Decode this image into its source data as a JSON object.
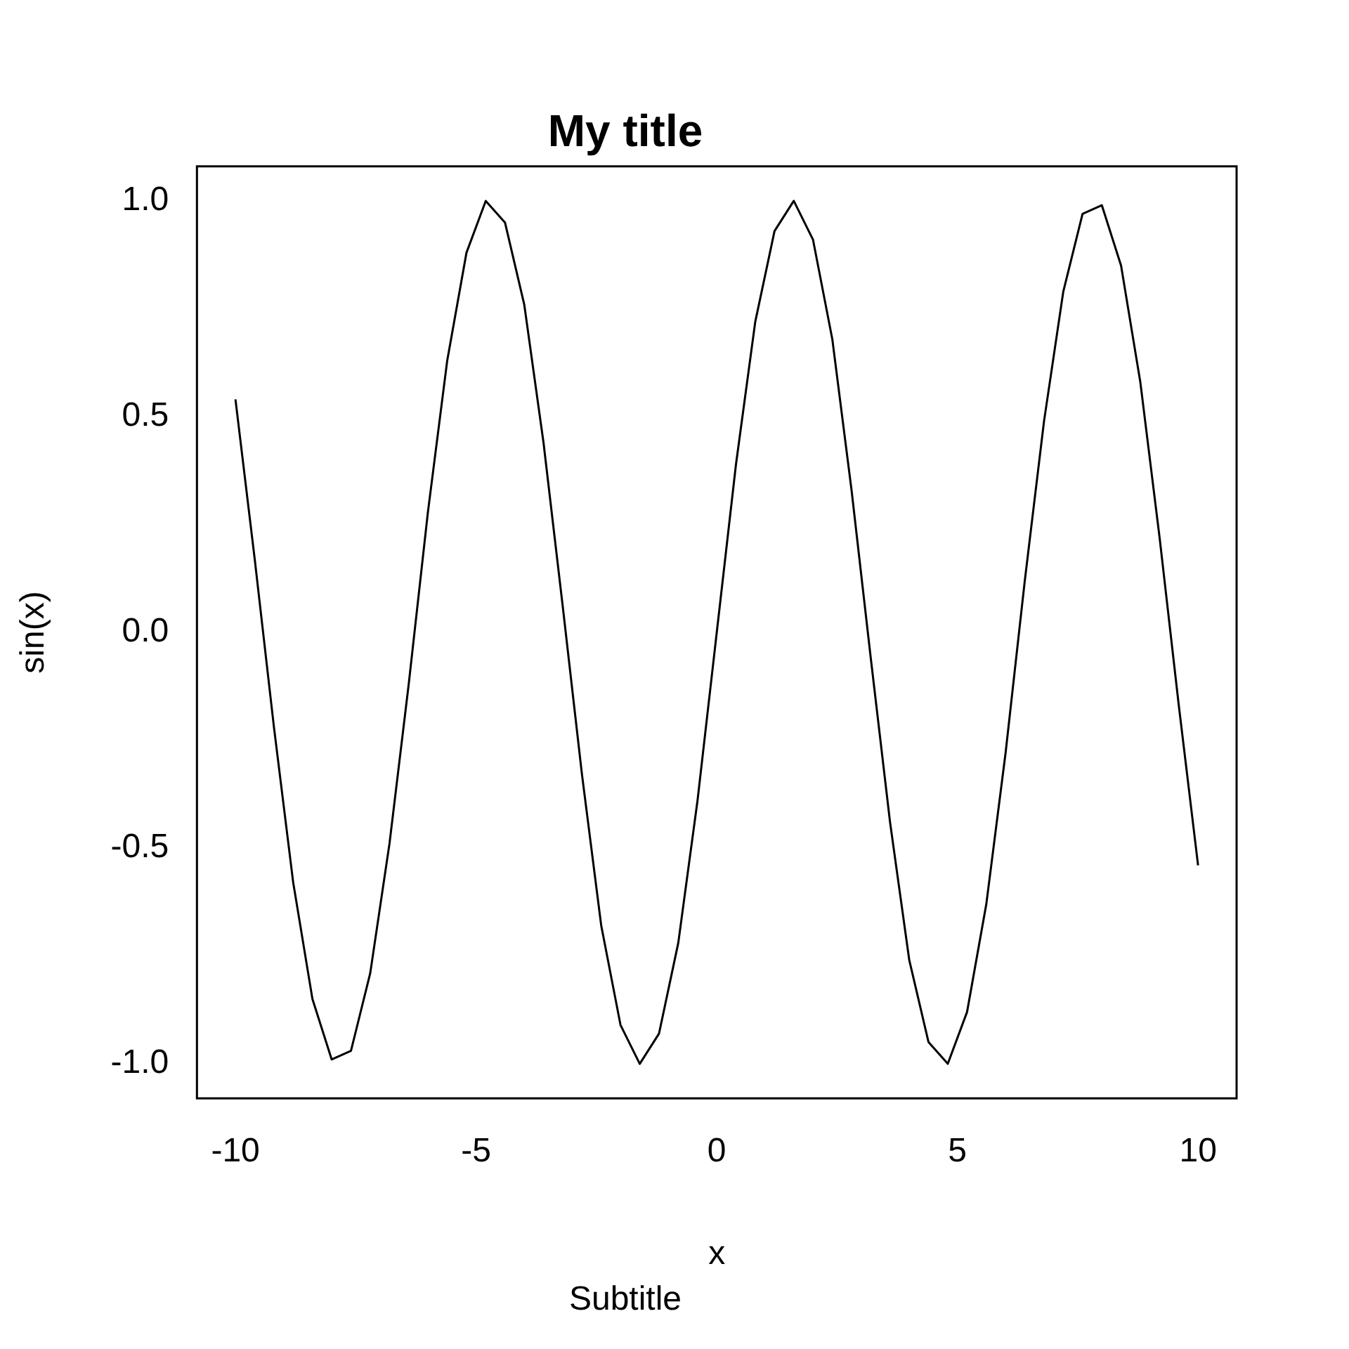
{
  "chart_data": {
    "type": "line",
    "title": "My title",
    "subtitle": "Subtitle",
    "xlabel": "x",
    "ylabel": "sin(x)",
    "x": [
      -10,
      -9.6,
      -9.2,
      -8.8,
      -8.4,
      -8,
      -7.6,
      -7.2,
      -6.8,
      -6.4,
      -6,
      -5.6,
      -5.2,
      -4.8,
      -4.4,
      -4,
      -3.6,
      -3.2,
      -2.8,
      -2.4,
      -2,
      -1.6,
      -1.2,
      -0.8,
      -0.4,
      0,
      0.4,
      0.8,
      1.2,
      1.6,
      2,
      2.4,
      2.8,
      3.2,
      3.6,
      4,
      4.4,
      4.8,
      5.2,
      5.6,
      6,
      6.4,
      6.8,
      7.2,
      7.6,
      8,
      8.4,
      8.8,
      9.2,
      9.6,
      10
    ],
    "series": [
      {
        "color": "#000000",
        "values": [
          0.54,
          0.17,
          -0.22,
          -0.58,
          -0.85,
          -0.99,
          -0.97,
          -0.79,
          -0.49,
          -0.12,
          0.28,
          0.63,
          0.88,
          1.0,
          0.95,
          0.76,
          0.44,
          0.06,
          -0.33,
          -0.68,
          -0.91,
          -1.0,
          -0.93,
          -0.72,
          -0.39,
          0,
          0.39,
          0.72,
          0.93,
          1.0,
          0.91,
          0.68,
          0.33,
          -0.06,
          -0.44,
          -0.76,
          -0.95,
          -1.0,
          -0.88,
          -0.63,
          -0.28,
          0.12,
          0.49,
          0.79,
          0.97,
          0.99,
          0.85,
          0.58,
          0.22,
          -0.17,
          -0.54
        ]
      }
    ],
    "xlim": [
      -10.8,
      10.8
    ],
    "xticks": [
      -10,
      -5,
      0,
      5,
      10
    ],
    "ylim": [
      -1.08,
      1.08
    ],
    "yticks": [
      {
        "value": -1,
        "label": "-1.0"
      },
      {
        "value": -0.5,
        "label": "-0.5"
      },
      {
        "value": 0,
        "label": "0.0"
      },
      {
        "value": 0.5,
        "label": "0.5"
      },
      {
        "value": 1,
        "label": "1.0"
      }
    ],
    "grid": false,
    "legend": false,
    "marker": "none",
    "line_style": "solid"
  }
}
